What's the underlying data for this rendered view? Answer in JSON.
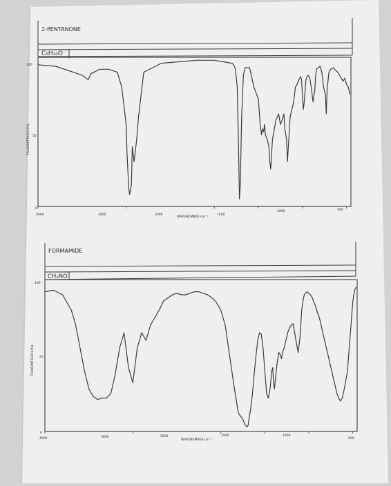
{
  "colors": {
    "ink": "#3a3a3a",
    "paper": "#f2f2f0",
    "background": "#d2d2d0"
  },
  "spectra": [
    {
      "title": "2-PENTANONE",
      "formula": "C5H10O",
      "formula_display": "C₅H₁₀O",
      "ylabel": "TRANSMITTANCE(%)",
      "xlabel": "WAVENUMBER·cm⁻¹",
      "y_ticks": [
        "100",
        "50",
        "0"
      ],
      "x_ticks": [
        "4000",
        "3000",
        "2000",
        "1500",
        "1000",
        "500"
      ]
    },
    {
      "title": "FORMAMIDE",
      "formula": "CH3NO",
      "formula_display": "CH₃NO",
      "ylabel": "TRANSMITTANCE(%)",
      "xlabel": "WAVENUMBER·cm⁻¹",
      "y_ticks": [
        "100",
        "50",
        "0"
      ],
      "x_ticks": [
        "4000",
        "3000",
        "2000",
        "1500",
        "1000",
        "500"
      ]
    }
  ],
  "chart_data": [
    {
      "type": "line",
      "title": "2-PENTANONE",
      "xlabel": "WAVENUMBER·cm⁻¹",
      "ylabel": "TRANSMITTANCE(%)",
      "xlim": [
        4000,
        450
      ],
      "ylim": [
        0,
        100
      ],
      "x_ticks": [
        4000,
        3000,
        2000,
        1500,
        1000,
        500
      ],
      "series": [
        {
          "x": [
            4000,
            3800,
            3600,
            3500,
            3430,
            3400,
            3300,
            3200,
            3100,
            3050,
            3000,
            2990,
            2970,
            2960,
            2940,
            2930,
            2910,
            2880,
            2860,
            2800,
            2600,
            2400,
            2200,
            2000,
            1900,
            1800,
            1780,
            1760,
            1740,
            1725,
            1715,
            1705,
            1690,
            1670,
            1650,
            1600,
            1550,
            1500,
            1480,
            1465,
            1455,
            1440,
            1430,
            1420,
            1400,
            1380,
            1370,
            1360,
            1340,
            1300,
            1270,
            1250,
            1230,
            1210,
            1200,
            1180,
            1170,
            1160,
            1140,
            1120,
            1100,
            1080,
            1060,
            1040,
            1020,
            1010,
            1000,
            990,
            980,
            960,
            940,
            920,
            900,
            880,
            860,
            850,
            840,
            820,
            800,
            780,
            760,
            740,
            730,
            720,
            700,
            680,
            650,
            620,
            600,
            580,
            560,
            540,
            520,
            500,
            480,
            460
          ],
          "y": [
            95,
            94,
            90,
            88,
            85,
            89,
            92,
            92,
            90,
            80,
            55,
            35,
            12,
            8,
            15,
            40,
            30,
            45,
            60,
            90,
            96,
            97,
            98,
            98,
            97,
            96,
            95,
            92,
            80,
            40,
            5,
            15,
            60,
            88,
            93,
            93,
            80,
            72,
            55,
            48,
            52,
            50,
            55,
            48,
            45,
            40,
            30,
            25,
            45,
            58,
            62,
            55,
            58,
            62,
            52,
            45,
            30,
            40,
            60,
            65,
            70,
            80,
            82,
            85,
            87,
            85,
            75,
            65,
            70,
            85,
            88,
            87,
            80,
            70,
            78,
            88,
            92,
            93,
            94,
            90,
            80,
            75,
            62,
            78,
            90,
            92,
            93,
            91,
            90,
            88,
            86,
            84,
            86,
            82,
            80,
            75
          ]
        }
      ]
    },
    {
      "type": "line",
      "title": "FORMAMIDE",
      "xlabel": "WAVENUMBER·cm⁻¹",
      "ylabel": "TRANSMITTANCE(%)",
      "xlim": [
        4000,
        450
      ],
      "ylim": [
        0,
        100
      ],
      "x_ticks": [
        4000,
        3000,
        2000,
        1500,
        1000,
        500
      ],
      "series": [
        {
          "x": [
            4000,
            3900,
            3800,
            3700,
            3650,
            3600,
            3550,
            3500,
            3450,
            3400,
            3350,
            3300,
            3250,
            3200,
            3150,
            3100,
            3050,
            3000,
            2950,
            2900,
            2850,
            2800,
            2750,
            2700,
            2650,
            2600,
            2550,
            2500,
            2450,
            2400,
            2350,
            2300,
            2250,
            2200,
            2150,
            2100,
            2050,
            2000,
            1950,
            1900,
            1850,
            1800,
            1750,
            1720,
            1700,
            1690,
            1680,
            1660,
            1640,
            1620,
            1600,
            1580,
            1560,
            1540,
            1520,
            1500,
            1480,
            1460,
            1440,
            1420,
            1410,
            1400,
            1390,
            1380,
            1360,
            1340,
            1320,
            1310,
            1300,
            1280,
            1260,
            1240,
            1220,
            1200,
            1180,
            1160,
            1140,
            1120,
            1100,
            1080,
            1060,
            1050,
            1040,
            1020,
            1000,
            980,
            960,
            940,
            920,
            900,
            880,
            860,
            840,
            820,
            800,
            780,
            760,
            740,
            720,
            700,
            680,
            660,
            640,
            620,
            600,
            580,
            560,
            540,
            520,
            500,
            480,
            460
          ],
          "y": [
            92,
            93,
            90,
            80,
            70,
            55,
            40,
            28,
            23,
            21,
            22,
            22,
            25,
            38,
            55,
            65,
            42,
            32,
            55,
            65,
            60,
            70,
            75,
            80,
            86,
            88,
            90,
            91,
            90,
            90,
            91,
            92,
            92,
            91,
            90,
            88,
            85,
            80,
            70,
            50,
            30,
            12,
            8,
            4,
            3,
            4,
            8,
            15,
            25,
            38,
            50,
            60,
            65,
            64,
            55,
            40,
            25,
            22,
            28,
            40,
            42,
            32,
            28,
            34,
            45,
            52,
            50,
            48,
            52,
            55,
            60,
            65,
            68,
            70,
            71,
            65,
            58,
            52,
            62,
            80,
            88,
            90,
            91,
            92,
            91,
            90,
            88,
            85,
            82,
            78,
            75,
            70,
            65,
            60,
            55,
            50,
            45,
            40,
            35,
            30,
            25,
            22,
            20,
            22,
            27,
            33,
            40,
            55,
            70,
            85,
            93,
            95
          ]
        }
      ]
    }
  ]
}
